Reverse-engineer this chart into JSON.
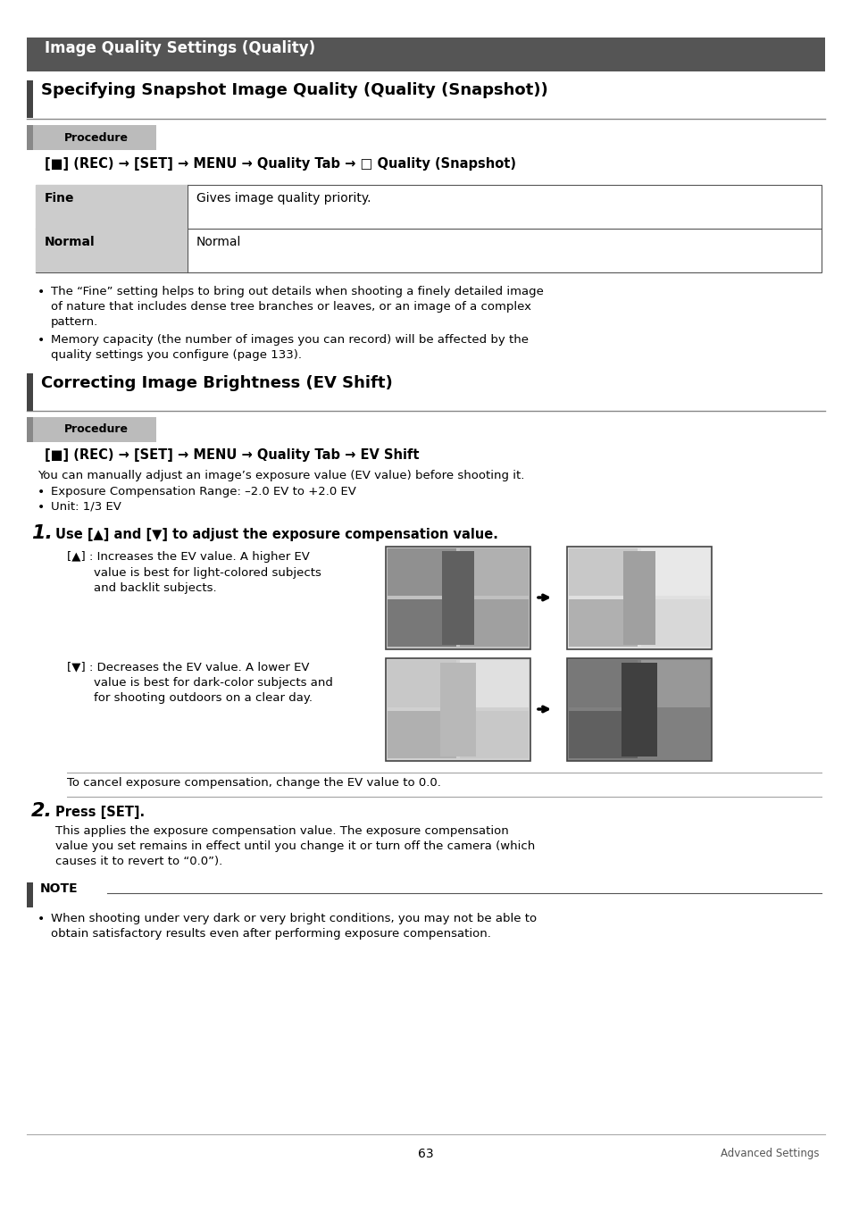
{
  "page_bg": "#ffffff",
  "header_bg": "#555555",
  "header_text": "Image Quality Settings (Quality)",
  "header_text_color": "#ffffff",
  "section1_title": "Specifying Snapshot Image Quality (Quality (Snapshot))",
  "procedure_bg": "#bbbbbb",
  "procedure_text": "Procedure",
  "menu_line1": "[■] (REC) → [SET] → MENU → Quality Tab → □ Quality (Snapshot)",
  "table_label_bg": "#cccccc",
  "row1_label": "Fine",
  "row1_desc": "Gives image quality priority.",
  "row2_label": "Normal",
  "row2_desc": "Normal",
  "bullet1a": "The “Fine” setting helps to bring out details when shooting a finely detailed image",
  "bullet1b": "of nature that includes dense tree branches or leaves, or an image of a complex",
  "bullet1c": "pattern.",
  "bullet2a": "Memory capacity (the number of images you can record) will be affected by the",
  "bullet2b": "quality settings you configure (page 133).",
  "section2_title": "Correcting Image Brightness (EV Shift)",
  "menu_line2": "[■] (REC) → [SET] → MENU → Quality Tab → EV Shift",
  "ev_intro": "You can manually adjust an image’s exposure value (EV value) before shooting it.",
  "ev_bullet1": "Exposure Compensation Range: –2.0 EV to +2.0 EV",
  "ev_bullet2": "Unit: 1/3 EV",
  "step1_num": "1.",
  "step1_text": "Use [▲] and [▼] to adjust the exposure compensation value.",
  "up_line1": "[▲] : Increases the EV value. A higher EV",
  "up_line2": "value is best for light-colored subjects",
  "up_line3": "and backlit subjects.",
  "down_line1": "[▼] : Decreases the EV value. A lower EV",
  "down_line2": "value is best for dark-color subjects and",
  "down_line3": "for shooting outdoors on a clear day.",
  "cancel_text": "To cancel exposure compensation, change the EV value to 0.0.",
  "step2_num": "2.",
  "step2_text": "Press [SET].",
  "step2_desc1": "This applies the exposure compensation value. The exposure compensation",
  "step2_desc2": "value you set remains in effect until you change it or turn off the camera (which",
  "step2_desc3": "causes it to revert to “0.0”).",
  "note_title": "NOTE",
  "note_text1": "When shooting under very dark or very bright conditions, you may not be able to",
  "note_text2": "obtain satisfactory results even after performing exposure compensation.",
  "page_num": "63",
  "footer_right": "Advanced Settings"
}
